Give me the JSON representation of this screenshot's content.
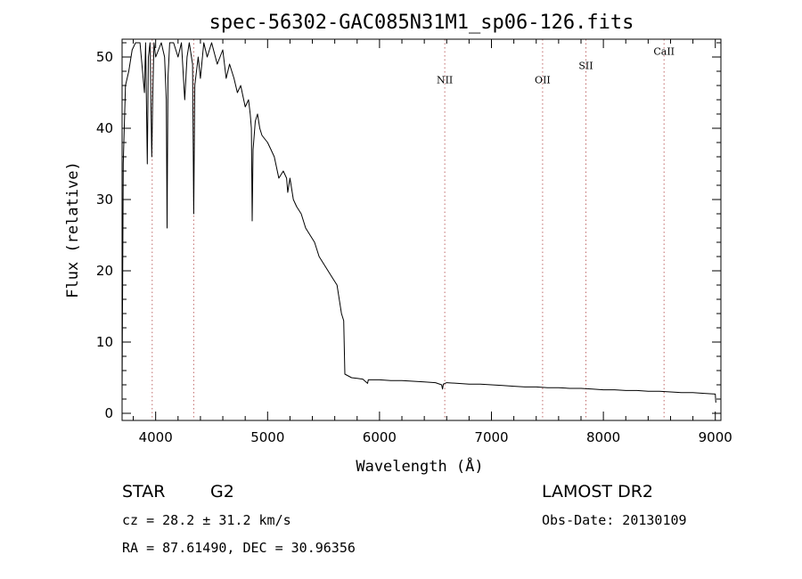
{
  "chart_data": {
    "type": "line",
    "title": "spec-56302-GAC085N31M1_sp06-126.fits",
    "xlabel": "Wavelength (Å)",
    "ylabel": "Flux (relative)",
    "xlim": [
      3700,
      9050
    ],
    "ylim": [
      -1,
      52.5
    ],
    "x_ticks": [
      4000,
      5000,
      6000,
      7000,
      8000,
      9000
    ],
    "y_ticks": [
      0,
      10,
      20,
      30,
      40,
      50
    ],
    "grid": false,
    "series": [
      {
        "points": [
          [
            3700,
            3
          ],
          [
            3710,
            35
          ],
          [
            3730,
            46
          ],
          [
            3760,
            48
          ],
          [
            3790,
            51
          ],
          [
            3820,
            52
          ],
          [
            3860,
            52
          ],
          [
            3900,
            45
          ],
          [
            3910,
            52
          ],
          [
            3925,
            35
          ],
          [
            3935,
            50
          ],
          [
            3950,
            52
          ],
          [
            3965,
            36
          ],
          [
            3975,
            45
          ],
          [
            3985,
            52
          ],
          [
            4000,
            50
          ],
          [
            4050,
            52
          ],
          [
            4080,
            50
          ],
          [
            4095,
            44
          ],
          [
            4102,
            26
          ],
          [
            4110,
            47
          ],
          [
            4125,
            52
          ],
          [
            4160,
            52
          ],
          [
            4200,
            50
          ],
          [
            4230,
            52
          ],
          [
            4260,
            44
          ],
          [
            4280,
            50
          ],
          [
            4300,
            52
          ],
          [
            4330,
            49
          ],
          [
            4340,
            28
          ],
          [
            4350,
            46
          ],
          [
            4380,
            50
          ],
          [
            4400,
            47
          ],
          [
            4430,
            52
          ],
          [
            4460,
            50
          ],
          [
            4500,
            52
          ],
          [
            4550,
            49
          ],
          [
            4600,
            51
          ],
          [
            4630,
            47
          ],
          [
            4660,
            49
          ],
          [
            4700,
            47
          ],
          [
            4730,
            45
          ],
          [
            4760,
            46
          ],
          [
            4800,
            43
          ],
          [
            4830,
            44
          ],
          [
            4845,
            42
          ],
          [
            4855,
            40
          ],
          [
            4862,
            27
          ],
          [
            4870,
            37
          ],
          [
            4890,
            41
          ],
          [
            4910,
            42
          ],
          [
            4930,
            40
          ],
          [
            4950,
            39
          ],
          [
            5000,
            38
          ],
          [
            5030,
            37
          ],
          [
            5060,
            36
          ],
          [
            5100,
            33
          ],
          [
            5140,
            34
          ],
          [
            5170,
            33
          ],
          [
            5180,
            31
          ],
          [
            5200,
            33
          ],
          [
            5230,
            30
          ],
          [
            5260,
            29
          ],
          [
            5300,
            28
          ],
          [
            5340,
            26
          ],
          [
            5380,
            25
          ],
          [
            5420,
            24
          ],
          [
            5460,
            22
          ],
          [
            5500,
            21
          ],
          [
            5540,
            20
          ],
          [
            5580,
            19
          ],
          [
            5620,
            18
          ],
          [
            5660,
            14
          ],
          [
            5680,
            13
          ],
          [
            5690,
            5.5
          ],
          [
            5750,
            5.0
          ],
          [
            5800,
            4.9
          ],
          [
            5850,
            4.8
          ],
          [
            5893,
            4.2
          ],
          [
            5900,
            4.7
          ],
          [
            6000,
            4.7
          ],
          [
            6100,
            4.6
          ],
          [
            6200,
            4.6
          ],
          [
            6300,
            4.5
          ],
          [
            6400,
            4.4
          ],
          [
            6500,
            4.3
          ],
          [
            6555,
            4.0
          ],
          [
            6563,
            3.4
          ],
          [
            6570,
            4.1
          ],
          [
            6600,
            4.3
          ],
          [
            6700,
            4.2
          ],
          [
            6800,
            4.1
          ],
          [
            6900,
            4.1
          ],
          [
            7000,
            4.0
          ],
          [
            7100,
            3.9
          ],
          [
            7200,
            3.8
          ],
          [
            7300,
            3.7
          ],
          [
            7400,
            3.7
          ],
          [
            7500,
            3.6
          ],
          [
            7600,
            3.6
          ],
          [
            7700,
            3.5
          ],
          [
            7800,
            3.5
          ],
          [
            7900,
            3.4
          ],
          [
            8000,
            3.3
          ],
          [
            8100,
            3.3
          ],
          [
            8200,
            3.2
          ],
          [
            8300,
            3.2
          ],
          [
            8400,
            3.1
          ],
          [
            8500,
            3.1
          ],
          [
            8600,
            3.0
          ],
          [
            8700,
            2.9
          ],
          [
            8800,
            2.9
          ],
          [
            8900,
            2.8
          ],
          [
            9000,
            2.7
          ],
          [
            9005,
            1.5
          ]
        ],
        "color": "#000000"
      }
    ],
    "reference_lines": [
      {
        "x": 3969,
        "label": ""
      },
      {
        "x": 4340,
        "label": ""
      },
      {
        "x": 6583,
        "label": "NII",
        "label_y": 46.3
      },
      {
        "x": 7457,
        "label": "OII",
        "label_y": 46.3
      },
      {
        "x": 7844,
        "label": "SII",
        "label_y": 48.3
      },
      {
        "x": 8542,
        "label": "CaII",
        "label_y": 50.3
      }
    ],
    "info": {
      "object_type": "STAR",
      "subclass": "G2",
      "survey": "LAMOST DR2",
      "cz_line": "cz = 28.2 ± 31.2 km/s",
      "obs_date_line": "Obs-Date: 20130109",
      "coords_line": "RA =  87.61490, DEC =  30.96356"
    }
  }
}
